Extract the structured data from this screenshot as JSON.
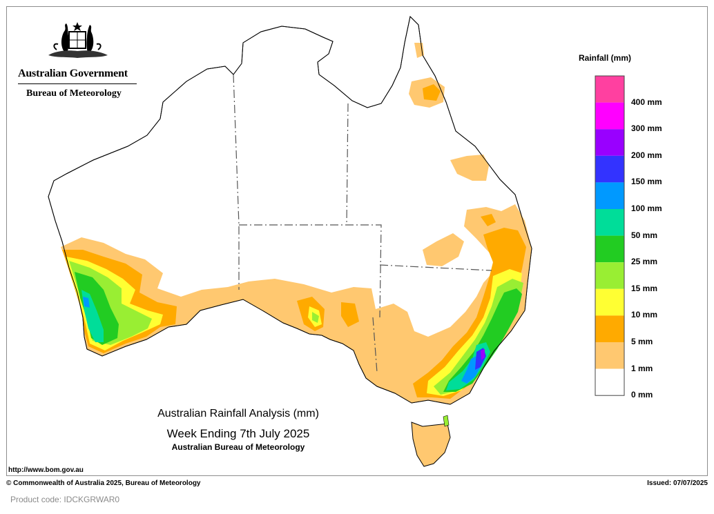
{
  "header": {
    "gov_name": "Australian Government",
    "agency": "Bureau of Meteorology"
  },
  "map": {
    "title_line1": "Australian Rainfall Analysis (mm)",
    "title_line2": "Week Ending 7th July 2025",
    "title_line3": "Australian Bureau of Meteorology",
    "url": "http://www.bom.gov.au"
  },
  "legend": {
    "title": "Rainfall (mm)",
    "levels": [
      {
        "label": "400 mm",
        "color": "#ff40a0"
      },
      {
        "label": "300 mm",
        "color": "#ff00ff"
      },
      {
        "label": "200 mm",
        "color": "#9900ff"
      },
      {
        "label": "150 mm",
        "color": "#3333ff"
      },
      {
        "label": "100 mm",
        "color": "#0099ff"
      },
      {
        "label": "50 mm",
        "color": "#00dd99"
      },
      {
        "label": "25 mm",
        "color": "#22cc22"
      },
      {
        "label": "15 mm",
        "color": "#99ee33"
      },
      {
        "label": "10 mm",
        "color": "#ffff33"
      },
      {
        "label": "5 mm",
        "color": "#ffaa00"
      },
      {
        "label": "1 mm",
        "color": "#ffc870"
      },
      {
        "label": "0 mm",
        "color": "#ffffff"
      }
    ]
  },
  "footer": {
    "copyright": "© Commonwealth of Australia 2025, Bureau of Meteorology",
    "issued": "Issued: 07/07/2025",
    "product_code": "Product code: IDCKGRWAR0"
  }
}
